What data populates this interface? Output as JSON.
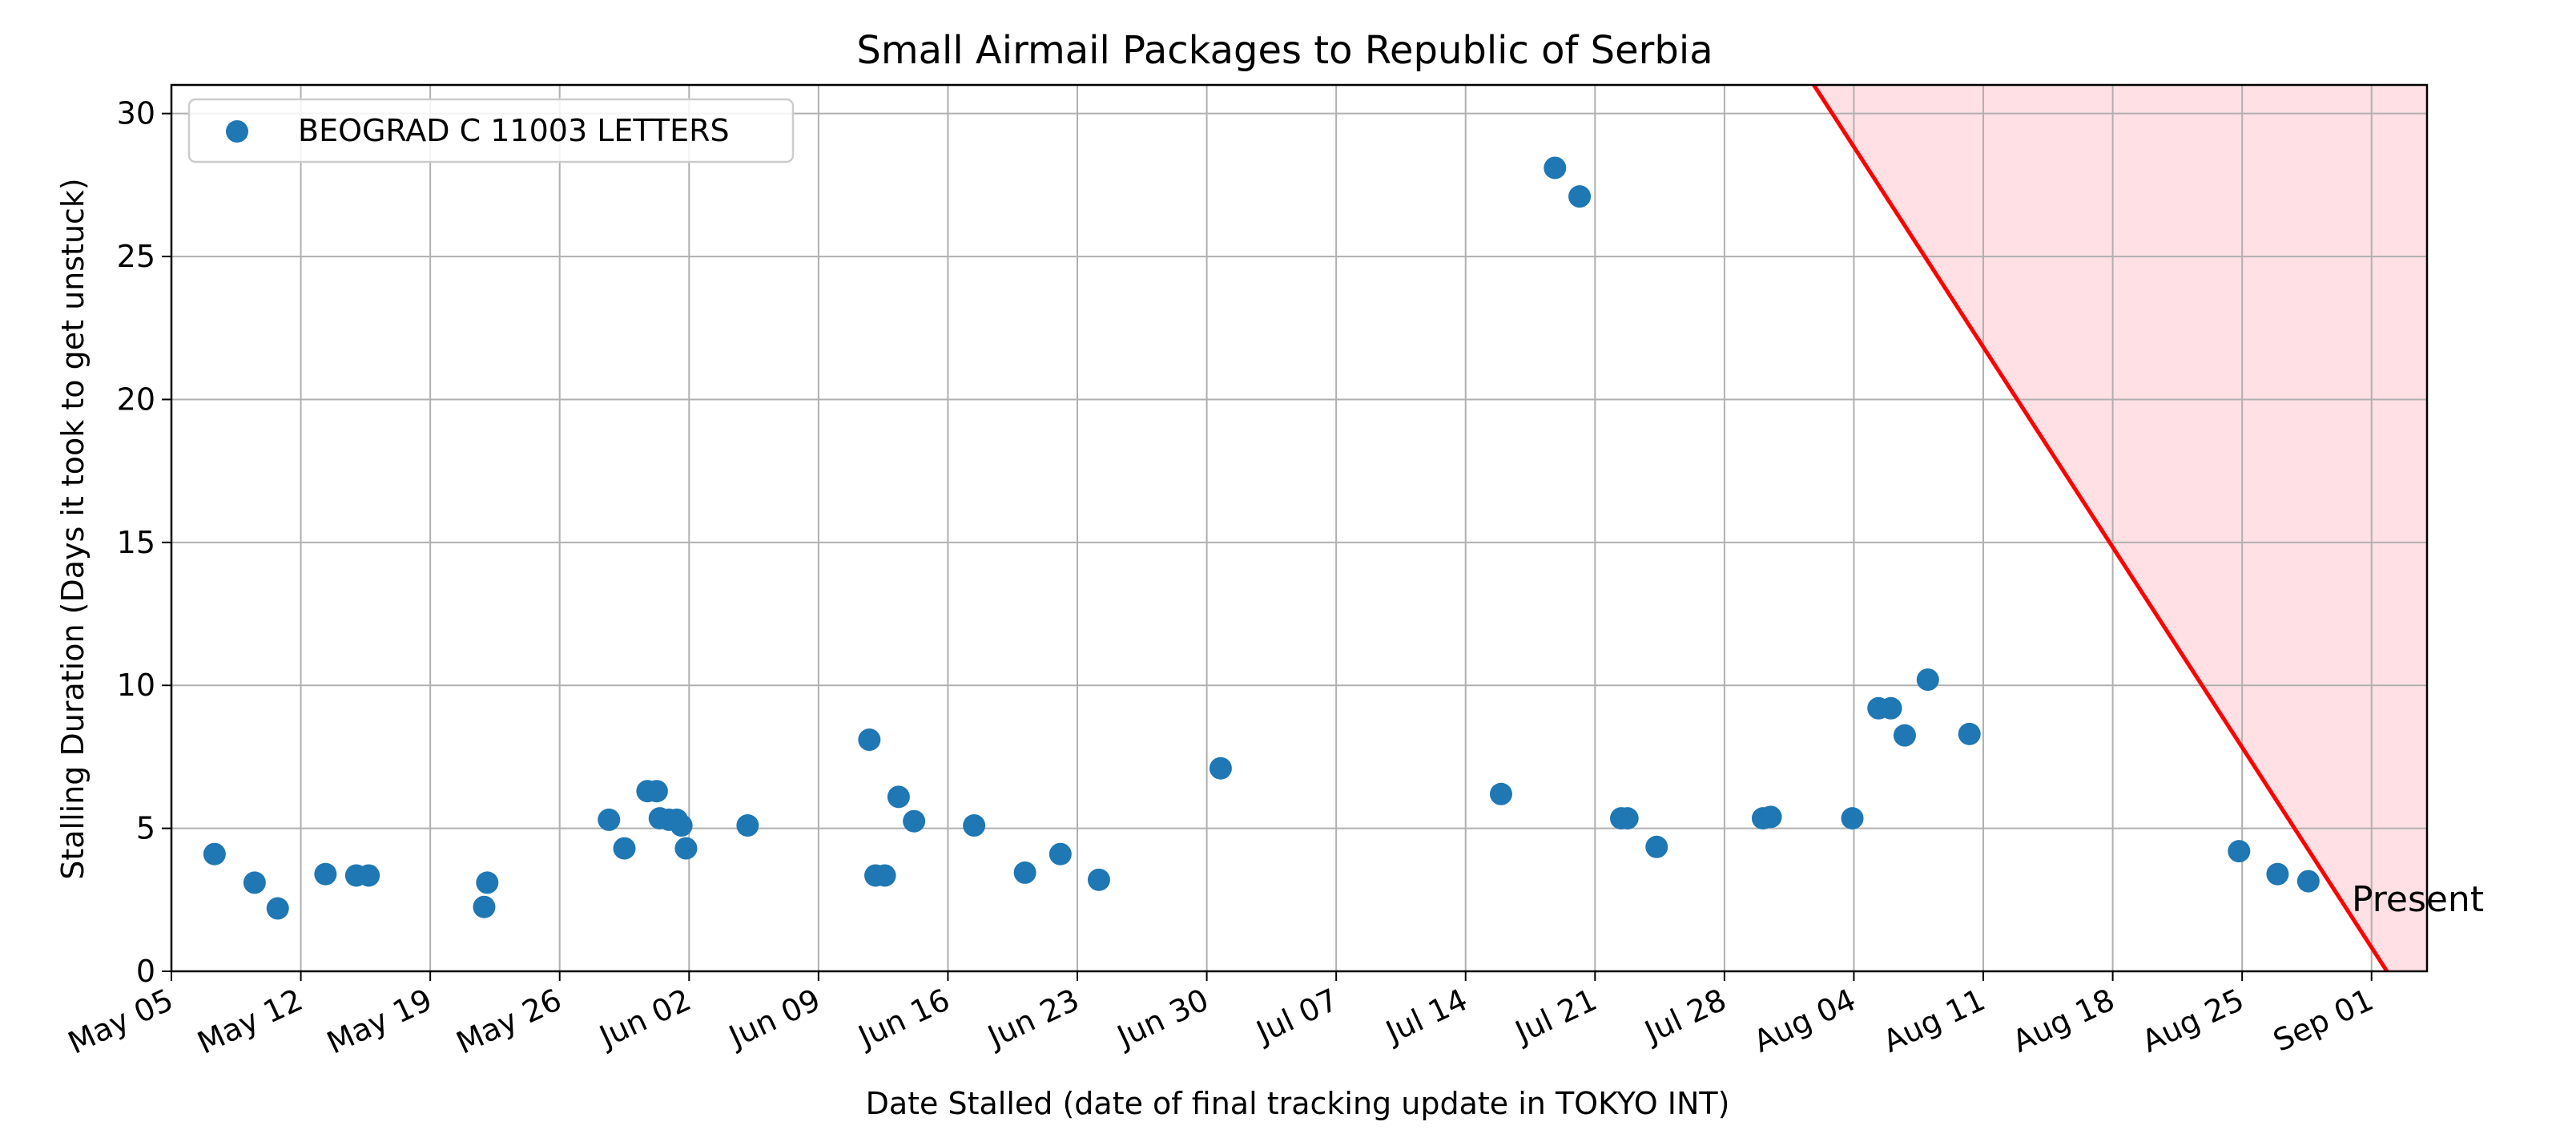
{
  "chart_data": {
    "type": "scatter",
    "title": "Small Airmail Packages to Republic of Serbia",
    "xlabel": "Date Stalled (date of final tracking update in TOKYO INT)",
    "ylabel": "Stalling Duration (Days it took to get unstuck)",
    "xlim": [
      "2024-05-05",
      "2024-09-04"
    ],
    "ylim": [
      0,
      31
    ],
    "x_ticks": [
      {
        "date": "2024-05-05",
        "label": "May 05"
      },
      {
        "date": "2024-05-12",
        "label": "May 12"
      },
      {
        "date": "2024-05-19",
        "label": "May 19"
      },
      {
        "date": "2024-05-26",
        "label": "May 26"
      },
      {
        "date": "2024-06-02",
        "label": "Jun 02"
      },
      {
        "date": "2024-06-09",
        "label": "Jun 09"
      },
      {
        "date": "2024-06-16",
        "label": "Jun 16"
      },
      {
        "date": "2024-06-23",
        "label": "Jun 23"
      },
      {
        "date": "2024-06-30",
        "label": "Jun 30"
      },
      {
        "date": "2024-07-07",
        "label": "Jul 07"
      },
      {
        "date": "2024-07-14",
        "label": "Jul 14"
      },
      {
        "date": "2024-07-21",
        "label": "Jul 21"
      },
      {
        "date": "2024-07-28",
        "label": "Jul 28"
      },
      {
        "date": "2024-08-04",
        "label": "Aug 04"
      },
      {
        "date": "2024-08-11",
        "label": "Aug 11"
      },
      {
        "date": "2024-08-18",
        "label": "Aug 18"
      },
      {
        "date": "2024-08-25",
        "label": "Aug 25"
      },
      {
        "date": "2024-09-01",
        "label": "Sep 01"
      }
    ],
    "y_ticks": [
      0,
      5,
      10,
      15,
      20,
      25,
      30
    ],
    "grid": true,
    "legend_position": "top-left",
    "series": [
      {
        "name": "BEOGRAD C 11003 LETTERS",
        "color": "#1f77b4",
        "points": [
          {
            "x": "2024-05-07 08:00",
            "y": 4.1
          },
          {
            "x": "2024-05-09 12:00",
            "y": 3.1
          },
          {
            "x": "2024-05-10 18:00",
            "y": 2.2
          },
          {
            "x": "2024-05-13 08:00",
            "y": 3.4
          },
          {
            "x": "2024-05-15 00:00",
            "y": 3.35
          },
          {
            "x": "2024-05-15 16:00",
            "y": 3.35
          },
          {
            "x": "2024-05-21 22:00",
            "y": 2.25
          },
          {
            "x": "2024-05-22 02:00",
            "y": 3.1
          },
          {
            "x": "2024-05-28 16:00",
            "y": 5.3
          },
          {
            "x": "2024-05-29 12:00",
            "y": 4.3
          },
          {
            "x": "2024-05-30 18:00",
            "y": 6.3
          },
          {
            "x": "2024-05-31 06:00",
            "y": 6.3
          },
          {
            "x": "2024-05-31 10:00",
            "y": 5.35
          },
          {
            "x": "2024-05-31 22:00",
            "y": 5.3
          },
          {
            "x": "2024-06-01 08:00",
            "y": 5.3
          },
          {
            "x": "2024-06-01 14:00",
            "y": 5.1
          },
          {
            "x": "2024-06-01 20:00",
            "y": 4.3
          },
          {
            "x": "2024-06-05 04:00",
            "y": 5.1
          },
          {
            "x": "2024-06-11 18:00",
            "y": 8.1
          },
          {
            "x": "2024-06-12 02:00",
            "y": 3.35
          },
          {
            "x": "2024-06-12 14:00",
            "y": 3.35
          },
          {
            "x": "2024-06-13 08:00",
            "y": 6.1
          },
          {
            "x": "2024-06-14 04:00",
            "y": 5.25
          },
          {
            "x": "2024-06-17 10:00",
            "y": 5.1
          },
          {
            "x": "2024-06-20 04:00",
            "y": 3.45
          },
          {
            "x": "2024-06-22 02:00",
            "y": 4.1
          },
          {
            "x": "2024-06-24 04:00",
            "y": 3.2
          },
          {
            "x": "2024-06-30 18:00",
            "y": 7.1
          },
          {
            "x": "2024-07-15 22:00",
            "y": 6.2
          },
          {
            "x": "2024-07-18 20:00",
            "y": 28.1
          },
          {
            "x": "2024-07-20 04:00",
            "y": 27.1
          },
          {
            "x": "2024-07-22 10:00",
            "y": 5.35
          },
          {
            "x": "2024-07-22 18:00",
            "y": 5.35
          },
          {
            "x": "2024-07-24 08:00",
            "y": 4.35
          },
          {
            "x": "2024-07-30 02:00",
            "y": 5.35
          },
          {
            "x": "2024-07-30 12:00",
            "y": 5.4
          },
          {
            "x": "2024-08-03 22:00",
            "y": 5.35
          },
          {
            "x": "2024-08-05 08:00",
            "y": 9.2
          },
          {
            "x": "2024-08-06 00:00",
            "y": 9.2
          },
          {
            "x": "2024-08-06 18:00",
            "y": 8.25
          },
          {
            "x": "2024-08-08 00:00",
            "y": 10.2
          },
          {
            "x": "2024-08-10 06:00",
            "y": 8.3
          },
          {
            "x": "2024-08-24 20:00",
            "y": 4.2
          },
          {
            "x": "2024-08-26 22:00",
            "y": 3.4
          },
          {
            "x": "2024-08-28 14:00",
            "y": 3.15
          }
        ]
      }
    ],
    "present_line": {
      "label": "Present",
      "color": "#ff0000",
      "fill_color": "#ffe0e4",
      "points": [
        {
          "x": "2024-08-01 20:00",
          "y": 31
        },
        {
          "x": "2024-09-01 20:00",
          "y": 0
        }
      ]
    }
  }
}
